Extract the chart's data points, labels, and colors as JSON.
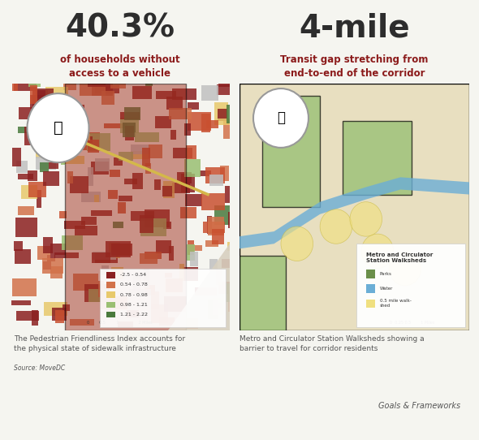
{
  "bg_color": "#f5f5f0",
  "bottom_bar_color": "#8b1a1a",
  "left_big_number": "40.3%",
  "left_big_number_color": "#2d2d2d",
  "left_subtitle": "of households without\naccess to a vehicle",
  "left_subtitle_color": "#8b1a1a",
  "right_big_number": "4-mile",
  "right_big_number_color": "#2d2d2d",
  "right_subtitle": "Transit gap stretching from\nend-to-end of the corridor",
  "right_subtitle_color": "#8b1a1a",
  "left_caption": "The Pedestrian Friendliness Index accounts for\nthe physical state of sidewalk infrastructure",
  "left_source": "Source: MoveDC",
  "right_caption": "Metro and Circulator Station Walksheds showing a\nbarrier to travel for corridor residents",
  "footer_text": "Goals & Frameworks",
  "footer_color": "#555555",
  "left_legend_colors": [
    "#8b2020",
    "#d2714a",
    "#e8c96b",
    "#9abf72",
    "#4a7a3d"
  ],
  "left_legend_labels": [
    "-2.5 - 0.54",
    "0.54 - 0.78",
    "0.78 - 0.98",
    "0.98 - 1.21",
    "1.21 - 2.22"
  ],
  "right_legend_colors": [
    "#6b8f4a",
    "#6baed6",
    "#f0e080"
  ],
  "right_legend_labels": [
    "Parks",
    "Water",
    "0.5 mile walk-\nshed"
  ],
  "map1_bg": "#c97050",
  "map2_bg": "#e8dfc0",
  "divider_color": "#cccccc"
}
